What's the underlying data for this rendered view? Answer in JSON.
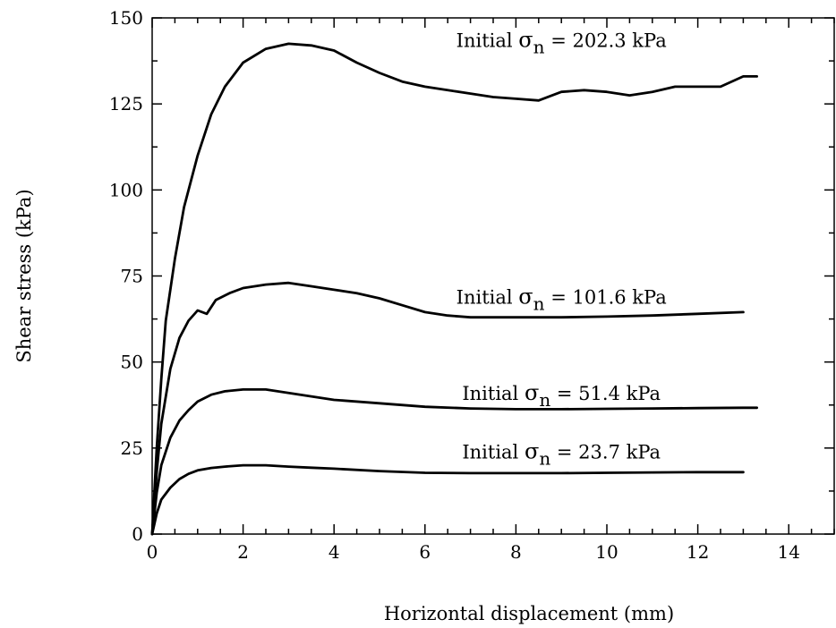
{
  "chart_data": {
    "type": "line",
    "xlabel": "Horizontal displacement (mm)",
    "ylabel": "Shear stress (kPa)",
    "xlim": [
      0,
      15
    ],
    "ylim": [
      0,
      150
    ],
    "xticks": [
      "0",
      "2",
      "4",
      "6",
      "8",
      "10",
      "12",
      "14"
    ],
    "yticks": [
      "0",
      "25",
      "50",
      "75",
      "100",
      "125",
      "150"
    ],
    "grid": false,
    "legend": "none",
    "series": [
      {
        "name": "Initial σn = 202.3 kPa",
        "label_prefix": "Initial ",
        "label_symbol": "σ",
        "label_subscript": "n",
        "label_suffix": " = 202.3 kPa",
        "x": [
          0,
          0.1,
          0.2,
          0.3,
          0.5,
          0.7,
          1.0,
          1.3,
          1.6,
          2.0,
          2.5,
          3.0,
          3.5,
          4.0,
          4.5,
          5.0,
          5.5,
          6.0,
          6.5,
          7.0,
          7.5,
          8.0,
          8.5,
          9.0,
          9.5,
          10.0,
          10.5,
          11.0,
          11.5,
          12.0,
          12.5,
          13.0,
          13.3
        ],
        "y": [
          0,
          25,
          45,
          62,
          80,
          95,
          110,
          122,
          130,
          137,
          141,
          142.5,
          142,
          140.5,
          137,
          134,
          131.5,
          130,
          129,
          128,
          127,
          126.5,
          126,
          128.5,
          129,
          128.5,
          127.5,
          128.5,
          130,
          130,
          130,
          133,
          133
        ]
      },
      {
        "name": "Initial σn = 101.6 kPa",
        "label_prefix": "Initial ",
        "label_symbol": "σ",
        "label_subscript": "n",
        "label_suffix": " = 101.6 kPa",
        "x": [
          0,
          0.1,
          0.2,
          0.4,
          0.6,
          0.8,
          1.0,
          1.2,
          1.4,
          1.7,
          2.0,
          2.5,
          3.0,
          3.5,
          4.0,
          4.5,
          5.0,
          5.5,
          6.0,
          6.5,
          7.0,
          8.0,
          9.0,
          10.0,
          11.0,
          12.0,
          13.0
        ],
        "y": [
          0,
          18,
          32,
          48,
          57,
          62,
          65,
          64,
          68,
          70,
          71.5,
          72.5,
          73,
          72,
          71,
          70,
          68.5,
          66.5,
          64.5,
          63.5,
          63,
          63,
          63,
          63.2,
          63.5,
          64,
          64.5
        ]
      },
      {
        "name": "Initial σn = 51.4 kPa",
        "label_prefix": "Initial ",
        "label_symbol": "σ",
        "label_subscript": "n",
        "label_suffix": " = 51.4 kPa",
        "x": [
          0,
          0.1,
          0.2,
          0.4,
          0.6,
          0.8,
          1.0,
          1.3,
          1.6,
          2.0,
          2.5,
          3.0,
          3.5,
          4.0,
          5.0,
          6.0,
          7.0,
          8.0,
          9.0,
          10.0,
          11.0,
          12.0,
          13.0,
          13.3
        ],
        "y": [
          0,
          12,
          20,
          28,
          33,
          36,
          38.5,
          40.5,
          41.5,
          42,
          42,
          41,
          40,
          39,
          38,
          37,
          36.5,
          36.3,
          36.3,
          36.4,
          36.5,
          36.6,
          36.7,
          36.7
        ]
      },
      {
        "name": "Initial σn = 23.7 kPa",
        "label_prefix": "Initial ",
        "label_symbol": "σ",
        "label_subscript": "n",
        "label_suffix": " = 23.7 kPa",
        "x": [
          0,
          0.1,
          0.2,
          0.4,
          0.6,
          0.8,
          1.0,
          1.3,
          1.6,
          2.0,
          2.5,
          3.0,
          3.5,
          4.0,
          5.0,
          6.0,
          7.0,
          8.0,
          9.0,
          10.0,
          11.0,
          12.0,
          13.0
        ],
        "y": [
          0,
          6,
          10,
          13.5,
          16,
          17.5,
          18.5,
          19.2,
          19.6,
          20,
          20,
          19.6,
          19.3,
          19,
          18.3,
          17.8,
          17.7,
          17.7,
          17.7,
          17.8,
          17.9,
          18,
          18
        ]
      }
    ]
  }
}
